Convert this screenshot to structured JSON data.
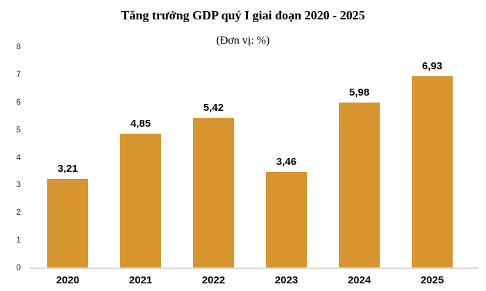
{
  "chart_data": {
    "type": "bar",
    "title": "Tăng trưởng GDP quý I giai đoạn 2020 - 2025",
    "subtitle": "(Đơn vị: %)",
    "categories": [
      "2020",
      "2021",
      "2022",
      "2023",
      "2024",
      "2025"
    ],
    "values": [
      3.21,
      4.85,
      5.42,
      3.46,
      5.98,
      6.93
    ],
    "value_labels": [
      "3,21",
      "4,85",
      "5,42",
      "3,46",
      "5,98",
      "6,93"
    ],
    "xlabel": "",
    "ylabel": "",
    "ylim": [
      0,
      8
    ],
    "yticks": [
      0,
      1,
      2,
      3,
      4,
      5,
      6,
      7,
      8
    ],
    "grid": "off",
    "legend": "none",
    "colors": {
      "bar": "#D6952F",
      "axis_line": "#D9D9D9",
      "tick_text": "#262626",
      "label_text": "#000000",
      "background": "#FFFFFF"
    }
  }
}
